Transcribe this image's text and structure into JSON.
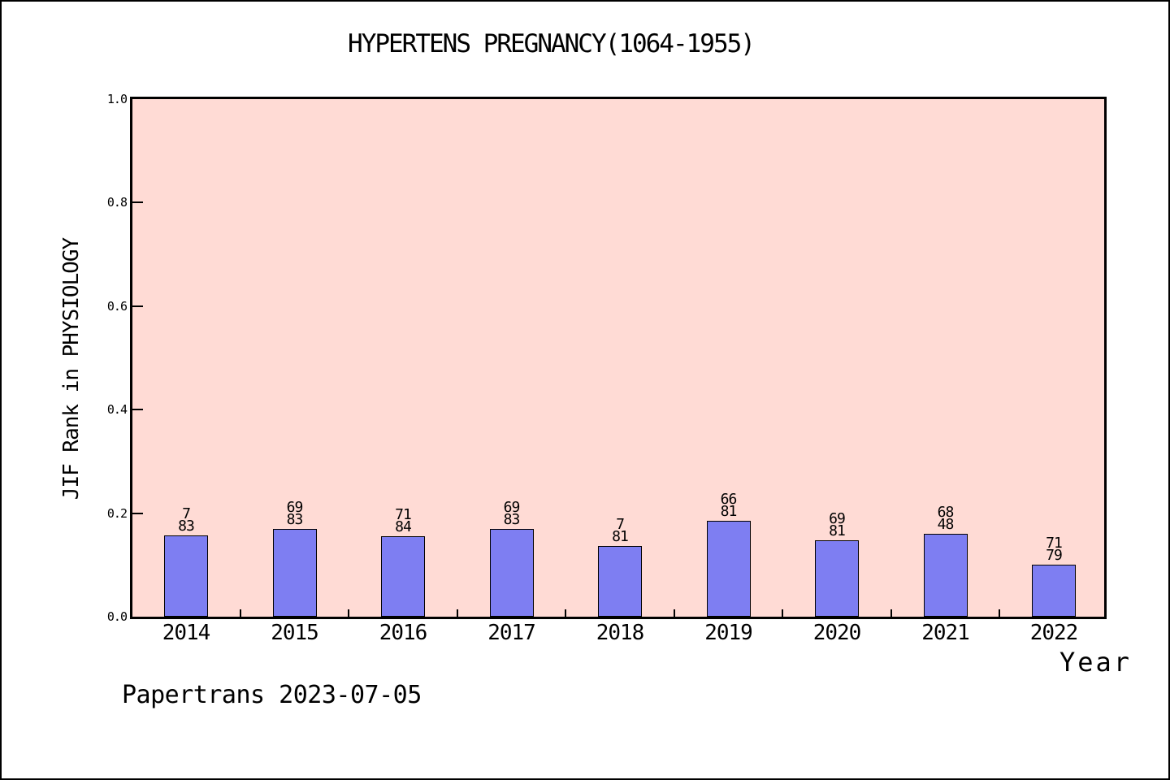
{
  "chart_data": {
    "type": "bar",
    "title": "HYPERTENS PREGNANCY(1064-1955)",
    "ylabel": "JIF Rank in PHYSIOLOGY",
    "xlabel": "Year",
    "footer": "Papertrans 2023-07-05",
    "ylim": [
      0.0,
      1.0
    ],
    "ytick_labels": [
      "0.0",
      "0.2",
      "0.4",
      "0.6",
      "0.8",
      "1.0"
    ],
    "grid": false,
    "legend": null,
    "categories": [
      "2014",
      "2015",
      "2016",
      "2017",
      "2018",
      "2019",
      "2020",
      "2021",
      "2022"
    ],
    "values": [
      0.157,
      0.169,
      0.155,
      0.169,
      0.136,
      0.185,
      0.148,
      0.16,
      0.101
    ],
    "bar_labels": [
      [
        "7",
        "83"
      ],
      [
        "69",
        "83"
      ],
      [
        "71",
        "84"
      ],
      [
        "69",
        "83"
      ],
      [
        "7",
        "81"
      ],
      [
        "66",
        "81"
      ],
      [
        "69",
        "81"
      ],
      [
        "68",
        "48"
      ],
      [
        "71",
        "79"
      ]
    ],
    "colors": {
      "bar_fill": "#7e7ef2",
      "bar_border": "#000000",
      "plot_bg": "#ffdbd5",
      "page_bg": "#ffffff",
      "axis": "#000000",
      "text": "#000000"
    }
  }
}
